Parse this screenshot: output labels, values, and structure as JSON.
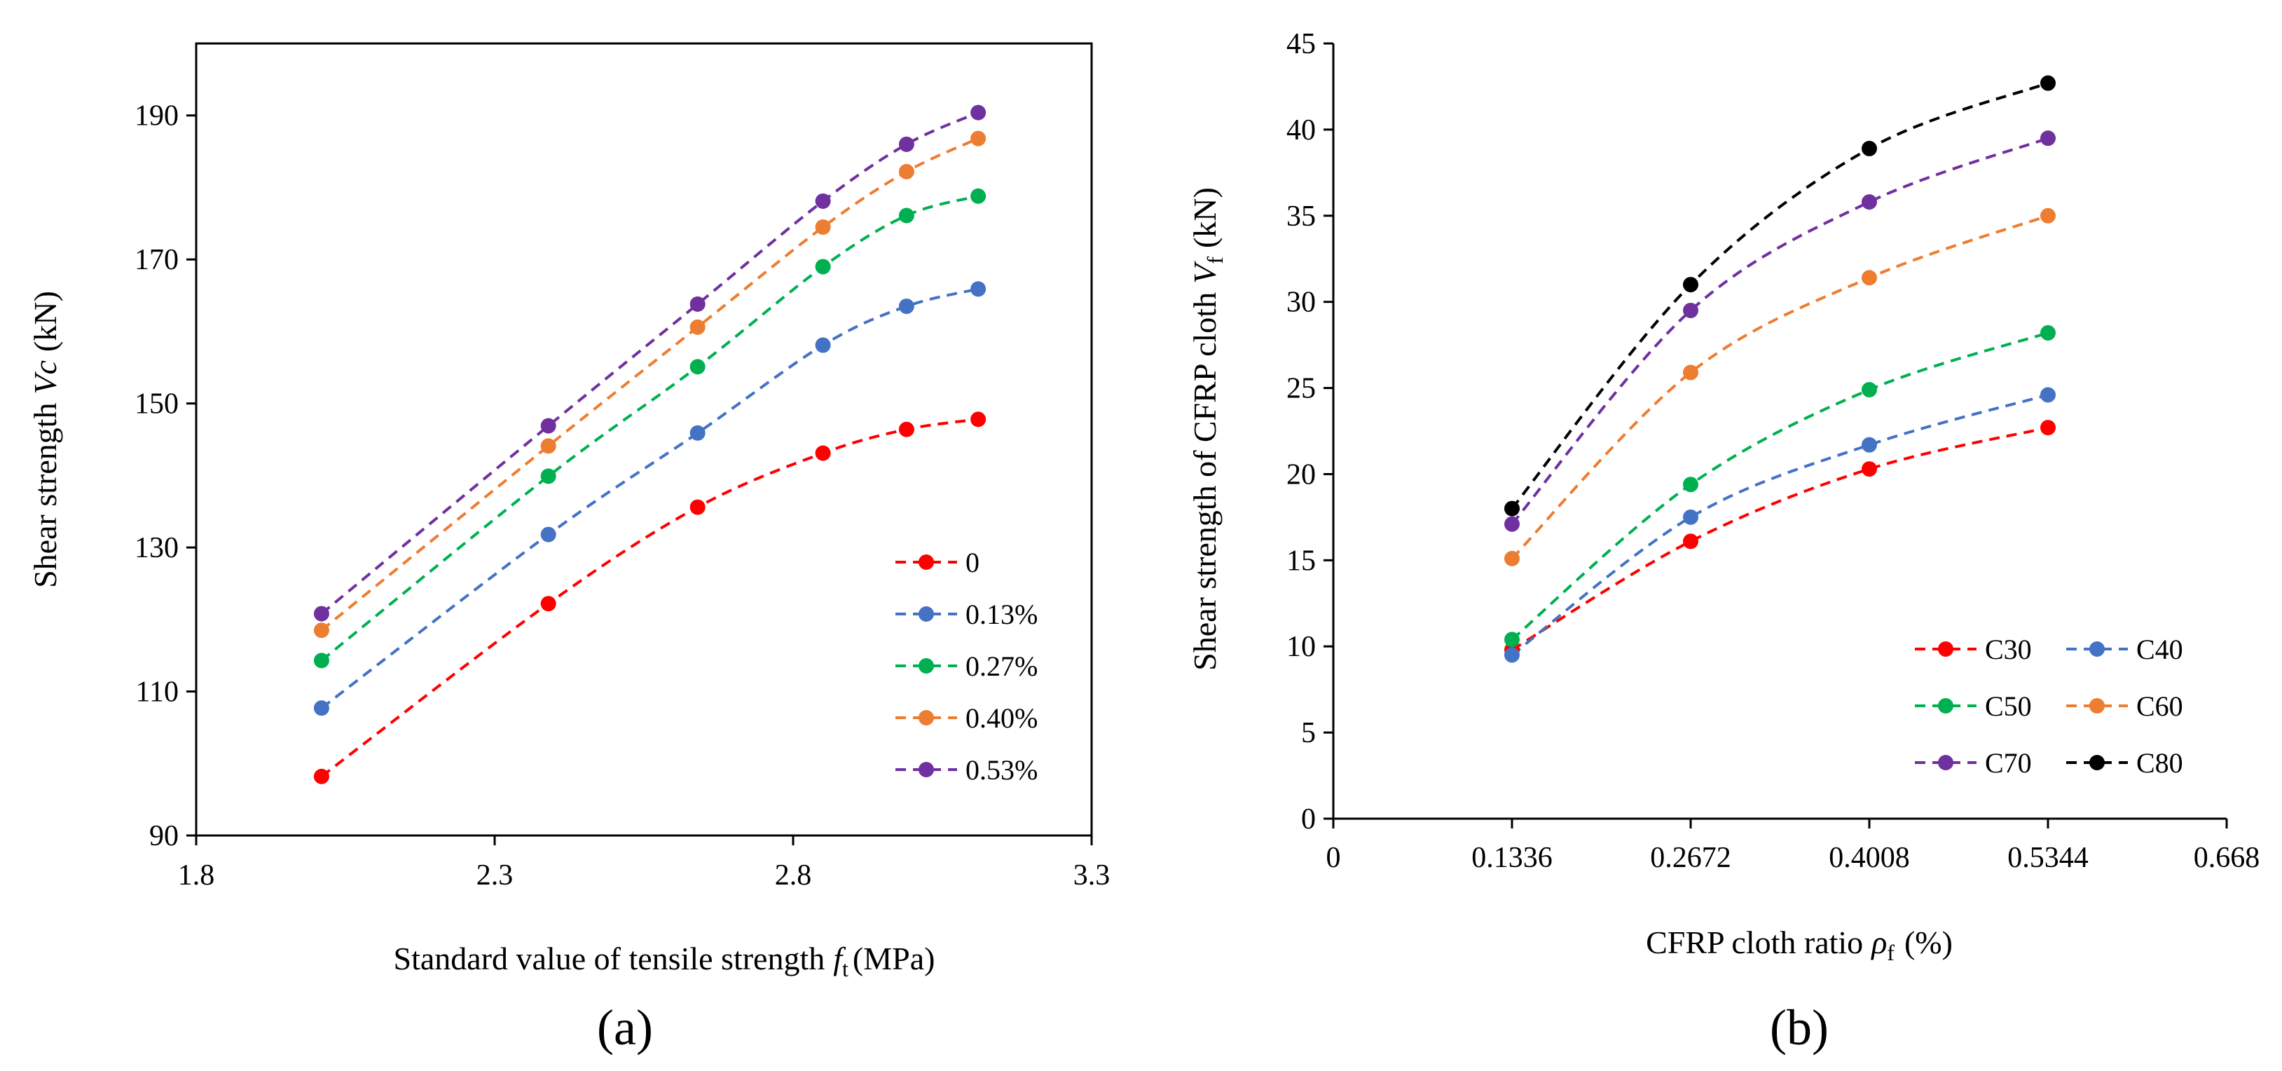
{
  "chart_data": [
    {
      "type": "line",
      "panel_label": "(a)",
      "xlabel": "Standard value of tensile strength",
      "xlabel_symbol": "f",
      "xlabel_sub": "t",
      "xlabel_unit": "(MPa)",
      "ylabel": "Shear strength",
      "ylabel_symbol": "Vc",
      "ylabel_unit": "(kN)",
      "xlim": [
        1.8,
        3.3
      ],
      "ylim": [
        90,
        200
      ],
      "xticks": [
        1.8,
        2.3,
        2.8,
        3.3
      ],
      "xtick_labels": [
        "1.8",
        "2.3",
        "2.8",
        "3.3"
      ],
      "yticks": [
        90,
        110,
        130,
        150,
        170,
        190
      ],
      "ytick_labels": [
        "90",
        "110",
        "130",
        "150",
        "170",
        "190"
      ],
      "grid": false,
      "legend_position": "bottom-right",
      "x": [
        2.01,
        2.39,
        2.64,
        2.85,
        2.99,
        3.11
      ],
      "series": [
        {
          "name": "0",
          "color": "#ff0000",
          "values": [
            98.2,
            122.2,
            135.6,
            143.1,
            146.4,
            147.8
          ]
        },
        {
          "name": "0.13%",
          "color": "#4472c4",
          "values": [
            107.7,
            131.8,
            145.9,
            158.1,
            163.5,
            165.9
          ]
        },
        {
          "name": "0.27%",
          "color": "#00b050",
          "values": [
            114.3,
            139.9,
            155.1,
            169.0,
            176.1,
            178.8
          ]
        },
        {
          "name": "0.40%",
          "color": "#ed7d31",
          "values": [
            118.5,
            144.1,
            160.6,
            174.5,
            182.2,
            186.8
          ]
        },
        {
          "name": "0.53%",
          "color": "#7030a0",
          "values": [
            120.8,
            146.9,
            163.8,
            178.1,
            186.0,
            190.4
          ]
        }
      ]
    },
    {
      "type": "line",
      "panel_label": "(b)",
      "xlabel": "CFRP cloth ratio",
      "xlabel_symbol": "ρ",
      "xlabel_sub": "f",
      "xlabel_unit": "(%)",
      "ylabel": "Shear strength of CFRP cloth",
      "ylabel_symbol": "V",
      "ylabel_sub": "f",
      "ylabel_unit": "(kN)",
      "xlim": [
        0,
        0.668
      ],
      "ylim": [
        0,
        45
      ],
      "xticks": [
        0,
        0.1336,
        0.2672,
        0.4008,
        0.5344,
        0.668
      ],
      "xtick_labels": [
        "0",
        "0.1336",
        "0.2672",
        "0.4008",
        "0.5344",
        "0.668"
      ],
      "yticks": [
        0,
        5,
        10,
        15,
        20,
        25,
        30,
        35,
        40,
        45
      ],
      "ytick_labels": [
        "0",
        "5",
        "10",
        "15",
        "20",
        "25",
        "30",
        "35",
        "40",
        "45"
      ],
      "grid": false,
      "legend_position": "bottom-right",
      "x": [
        0.1336,
        0.2672,
        0.4008,
        0.5344
      ],
      "series": [
        {
          "name": "C30",
          "color": "#ff0000",
          "values": [
            9.8,
            16.1,
            20.3,
            22.7
          ]
        },
        {
          "name": "C40",
          "color": "#4472c4",
          "values": [
            9.5,
            17.5,
            21.7,
            24.6
          ]
        },
        {
          "name": "C50",
          "color": "#00b050",
          "values": [
            10.4,
            19.4,
            24.9,
            28.2
          ]
        },
        {
          "name": "C60",
          "color": "#ed7d31",
          "values": [
            15.1,
            25.9,
            31.4,
            35.0
          ]
        },
        {
          "name": "C70",
          "color": "#7030a0",
          "values": [
            17.1,
            29.5,
            35.8,
            39.5
          ]
        },
        {
          "name": "C80",
          "color": "#000000",
          "values": [
            18.0,
            31.0,
            38.9,
            42.7
          ]
        }
      ]
    }
  ]
}
